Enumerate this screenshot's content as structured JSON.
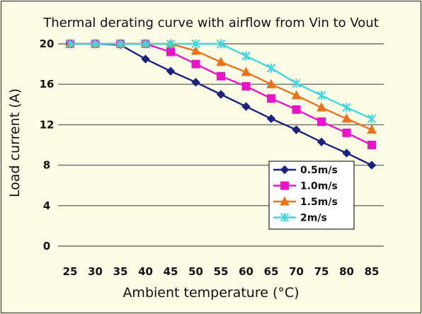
{
  "chart_data": {
    "type": "line",
    "title": "Thermal derating curve with airflow from Vin to Vout",
    "xlabel": "Ambient temperature (°C)",
    "ylabel": "Load current (A)",
    "categories": [
      "25",
      "30",
      "35",
      "40",
      "45",
      "50",
      "55",
      "60",
      "65",
      "70",
      "75",
      "80",
      "85"
    ],
    "ylim": [
      0,
      20
    ],
    "yticks": [
      "0",
      "4",
      "8",
      "12",
      "16",
      "20"
    ],
    "grid": true,
    "legend_position": "inside-right",
    "series": [
      {
        "name": "0.5m/s",
        "color": "#1a237e",
        "marker": "diamond",
        "values": [
          20,
          20,
          19.9,
          18.5,
          17.3,
          16.2,
          15,
          13.8,
          12.6,
          11.5,
          10.3,
          9.2,
          8
        ]
      },
      {
        "name": "1.0m/s",
        "color": "#e815c8",
        "marker": "square",
        "values": [
          20,
          20,
          20,
          20,
          19.2,
          18,
          16.8,
          15.8,
          14.6,
          13.5,
          12.3,
          11.2,
          10
        ]
      },
      {
        "name": "1.5m/s",
        "color": "#e8731c",
        "marker": "triangle",
        "values": [
          20,
          20,
          20,
          20,
          20,
          19.3,
          18.2,
          17.2,
          16,
          14.9,
          13.7,
          12.6,
          11.5
        ]
      },
      {
        "name": "2m/s",
        "color": "#3fd6e0",
        "marker": "x",
        "values": [
          20,
          20,
          20,
          20,
          20,
          20,
          20,
          18.8,
          17.6,
          16.1,
          14.9,
          13.7,
          12.6
        ]
      }
    ]
  }
}
